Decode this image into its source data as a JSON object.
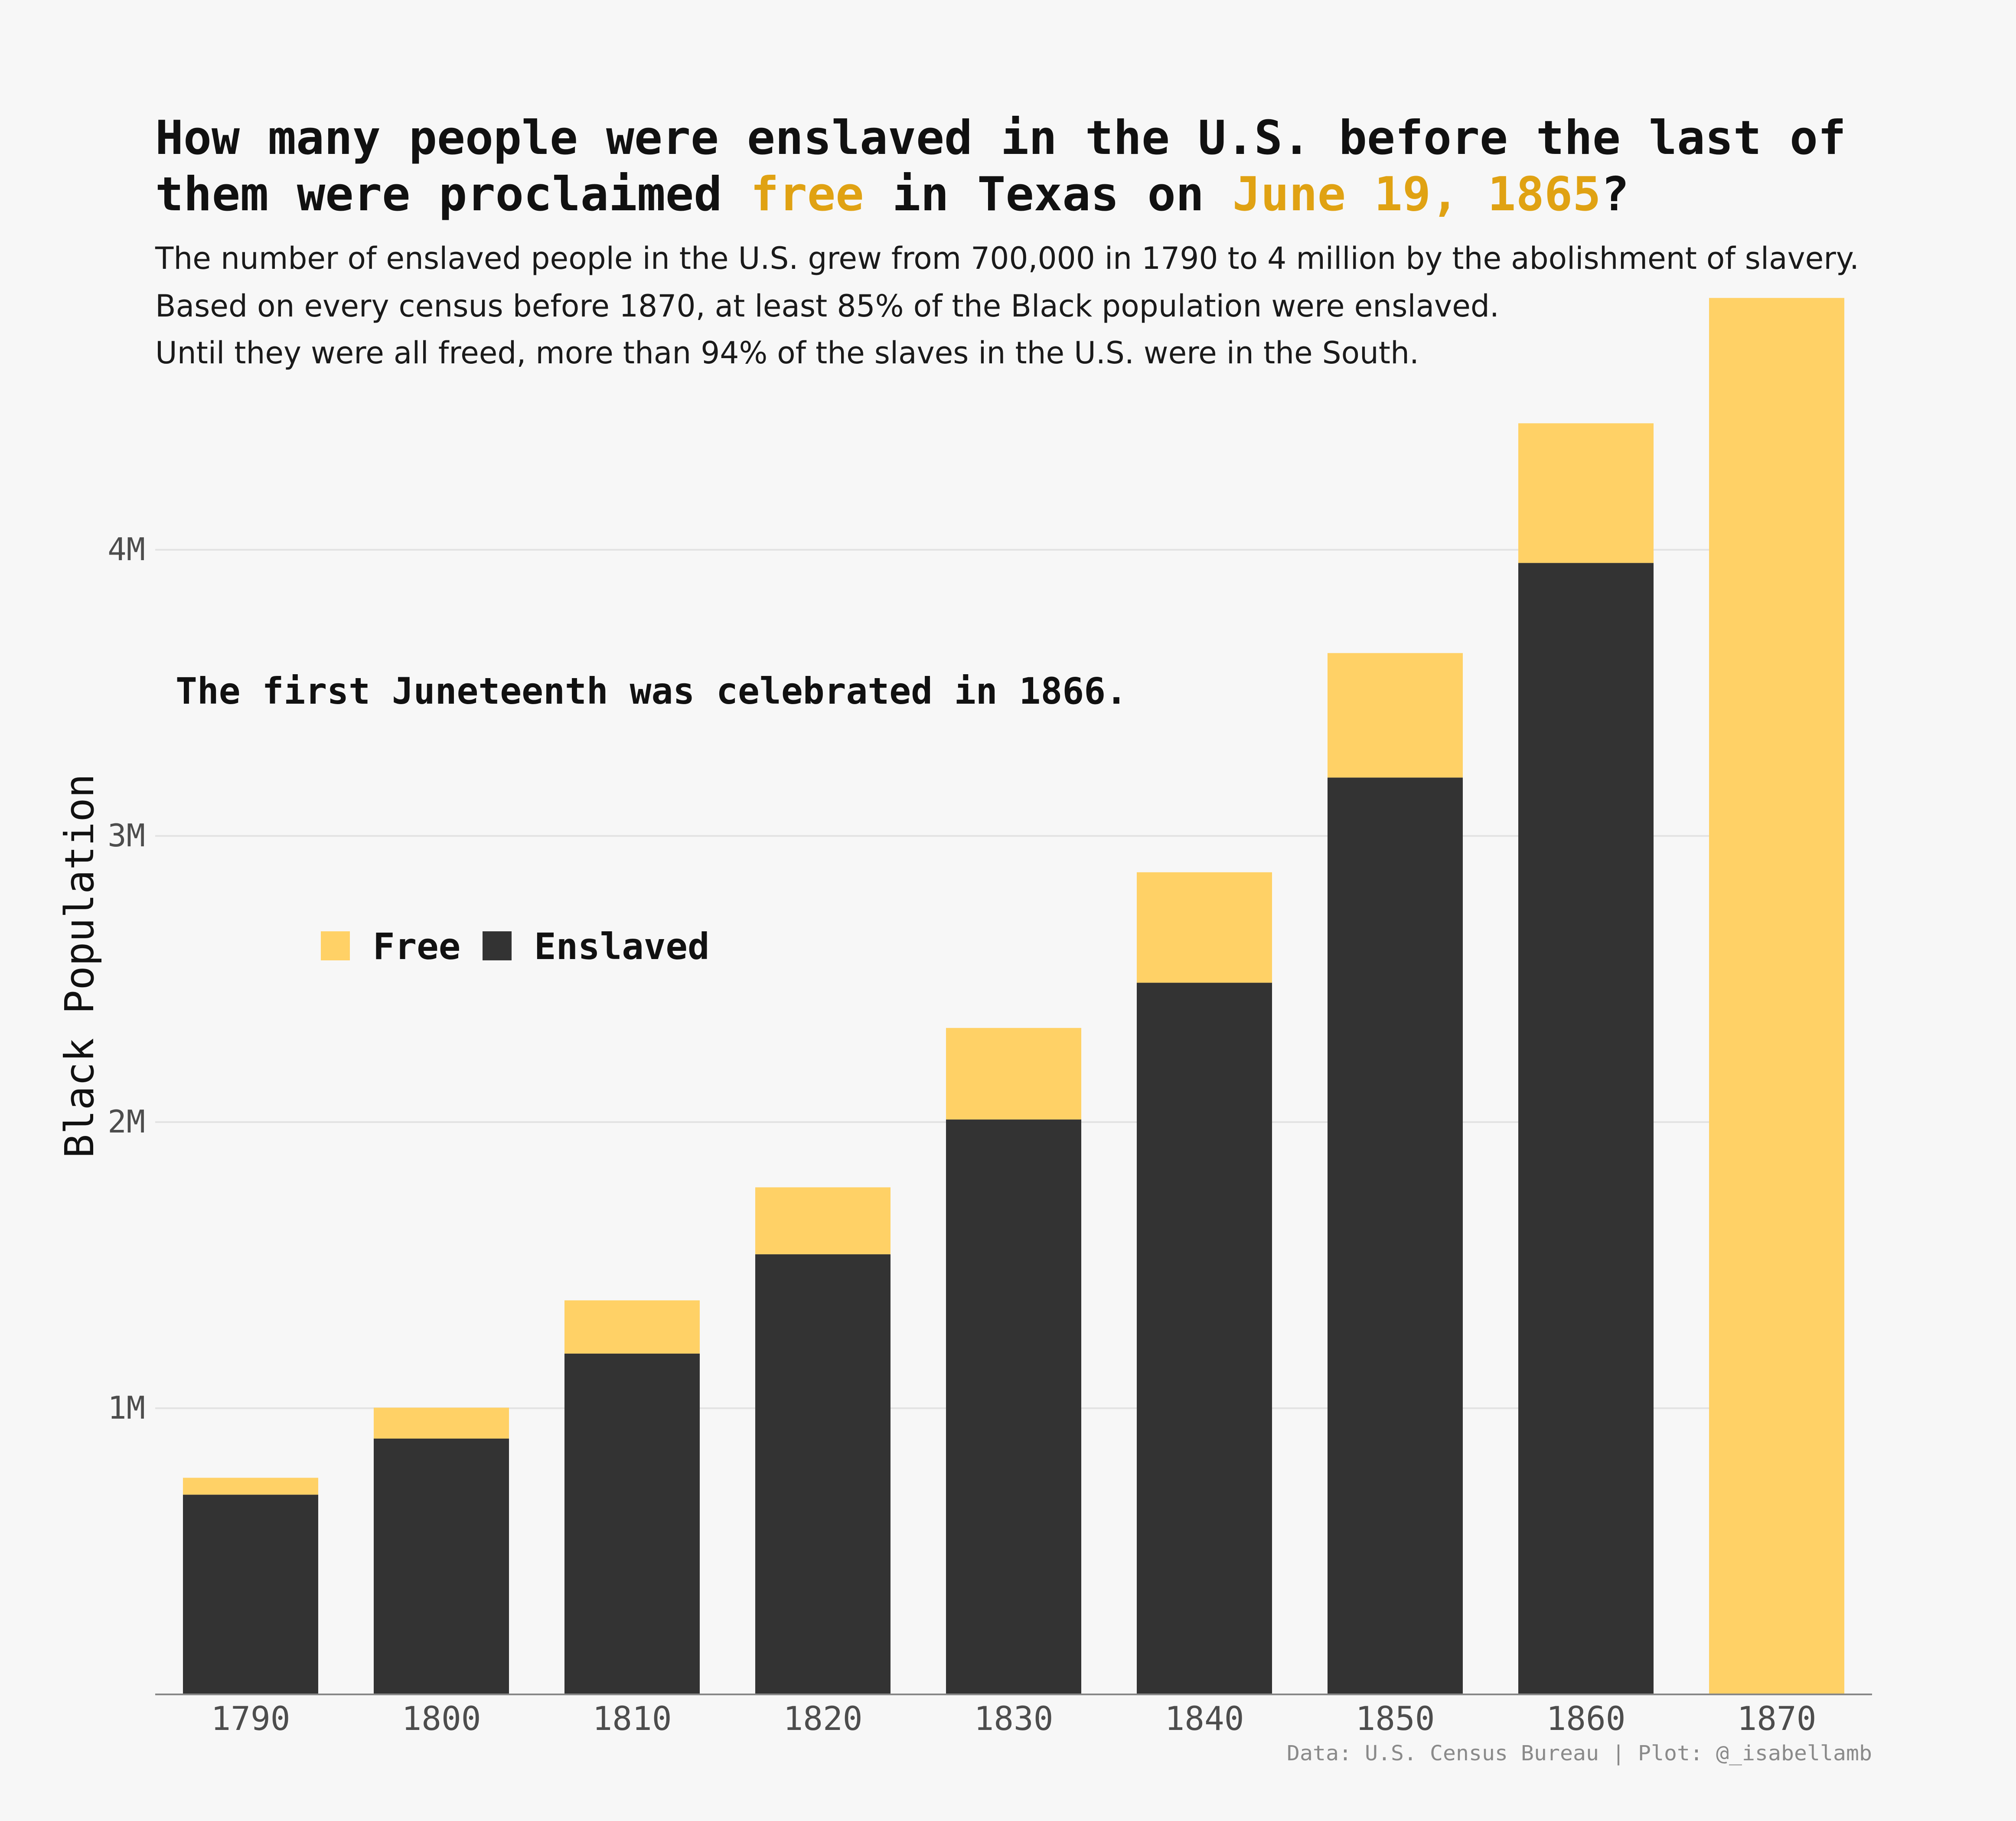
{
  "colors": {
    "background": "#f7f7f7",
    "free": "#ffd166",
    "enslaved": "#333333",
    "title": "#111111",
    "highlight": "#e0a213",
    "subtitle": "#1a1a1a",
    "axis_text": "#4d4d4d",
    "grid": "#e3e3e3",
    "caption": "#8a8a8a"
  },
  "title": {
    "line1": "How many people were enslaved in the U.S. before the last of",
    "line2_a": "them were proclaimed ",
    "line2_b": "free",
    "line2_c": " in Texas on ",
    "line2_d": "June 19, 1865",
    "line2_e": "?"
  },
  "subtitle": {
    "line1": "The number of enslaved people in the U.S. grew from 700,000 in 1790 to 4 million by the abolishment of slavery.",
    "line2": "Based on every census before 1870, at least 85% of the Black population were enslaved.",
    "line3": "Until they were all freed, more than 94% of the slaves in the U.S. were in the South."
  },
  "annotation": "The first Juneteenth was celebrated in 1866.",
  "legend": {
    "placement": "left-middle",
    "items": [
      {
        "label": "Free",
        "color": "#ffd166"
      },
      {
        "label": "Enslaved",
        "color": "#333333"
      }
    ]
  },
  "caption": "Data: U.S. Census Bureau | Plot: @_isabellamb",
  "chart_data": {
    "type": "bar",
    "stacked": true,
    "categories": [
      "1790",
      "1800",
      "1810",
      "1820",
      "1830",
      "1840",
      "1850",
      "1860",
      "1870"
    ],
    "series": [
      {
        "name": "Enslaved",
        "values": [
          698000,
          894000,
          1191000,
          1538000,
          2009000,
          2487000,
          3204000,
          3954000,
          0
        ]
      },
      {
        "name": "Free",
        "values": [
          59000,
          108000,
          186000,
          234000,
          320000,
          386000,
          435000,
          488000,
          4880000
        ]
      }
    ],
    "ylabel": "Black Population",
    "xlabel": "",
    "yticks": [
      {
        "value": 1000000,
        "label": "1M"
      },
      {
        "value": 2000000,
        "label": "2M"
      },
      {
        "value": 3000000,
        "label": "3M"
      },
      {
        "value": 4000000,
        "label": "4M"
      }
    ],
    "ylim": [
      0,
      4880000
    ],
    "grid": true
  }
}
